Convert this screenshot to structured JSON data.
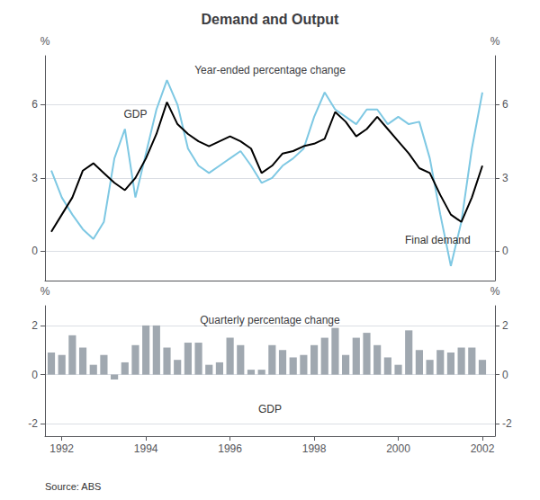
{
  "title": "Demand and Output",
  "source": "Source: ABS",
  "chart_data": [
    {
      "type": "line",
      "subtitle": "Year-ended percentage change",
      "x": [
        1991.75,
        1992.0,
        1992.25,
        1992.5,
        1992.75,
        1993.0,
        1993.25,
        1993.5,
        1993.75,
        1994.0,
        1994.25,
        1994.5,
        1994.75,
        1995.0,
        1995.25,
        1995.5,
        1995.75,
        1996.0,
        1996.25,
        1996.5,
        1996.75,
        1997.0,
        1997.25,
        1997.5,
        1997.75,
        1998.0,
        1998.25,
        1998.5,
        1998.75,
        1999.0,
        1999.25,
        1999.5,
        1999.75,
        2000.0,
        2000.25,
        2000.5,
        2000.75,
        2001.0,
        2001.25,
        2001.5,
        2001.75,
        2002.0
      ],
      "series": [
        {
          "name": "Final demand",
          "color": "#7ec8e3",
          "values": [
            3.3,
            2.2,
            1.5,
            0.9,
            0.5,
            1.2,
            3.8,
            5.0,
            2.2,
            4.0,
            5.8,
            7.0,
            6.0,
            4.2,
            3.5,
            3.2,
            3.5,
            3.8,
            4.1,
            3.5,
            2.8,
            3.0,
            3.5,
            3.8,
            4.2,
            5.5,
            6.5,
            5.8,
            5.5,
            5.2,
            5.8,
            5.8,
            5.2,
            5.5,
            5.2,
            5.3,
            3.8,
            1.5,
            -0.6,
            1.2,
            4.2,
            6.5
          ]
        },
        {
          "name": "GDP",
          "color": "#000000",
          "values": [
            0.8,
            1.5,
            2.2,
            3.3,
            3.6,
            3.2,
            2.8,
            2.5,
            3.0,
            3.8,
            4.8,
            6.1,
            5.2,
            4.8,
            4.5,
            4.3,
            4.5,
            4.7,
            4.5,
            4.2,
            3.2,
            3.5,
            4.0,
            4.1,
            4.3,
            4.4,
            4.6,
            5.7,
            5.3,
            4.7,
            5.0,
            5.5,
            5.0,
            4.5,
            4.0,
            3.4,
            3.2,
            2.3,
            1.5,
            1.2,
            2.2,
            3.5
          ]
        }
      ],
      "xlim": [
        1991.6,
        2002.3
      ],
      "xticks": [],
      "ylim": [
        -1.2,
        8.0
      ],
      "yticks": [
        0,
        3,
        6
      ],
      "y2lim": [
        -1.2,
        8.0
      ],
      "y2ticks": [
        0,
        3,
        6
      ],
      "ylabel": "%",
      "y2label": "%",
      "grid": true,
      "tick_labels": "y",
      "annotations": [
        "GDP",
        "Final demand"
      ]
    },
    {
      "type": "bar",
      "subtitle": "Quarterly percentage change",
      "x": [
        1991.75,
        1992.0,
        1992.25,
        1992.5,
        1992.75,
        1993.0,
        1993.25,
        1993.5,
        1993.75,
        1994.0,
        1994.25,
        1994.5,
        1994.75,
        1995.0,
        1995.25,
        1995.5,
        1995.75,
        1996.0,
        1996.25,
        1996.5,
        1996.75,
        1997.0,
        1997.25,
        1997.5,
        1997.75,
        1998.0,
        1998.25,
        1998.5,
        1998.75,
        1999.0,
        1999.25,
        1999.5,
        1999.75,
        2000.0,
        2000.25,
        2000.5,
        2000.75,
        2001.0,
        2001.25,
        2001.5,
        2001.75,
        2002.0
      ],
      "values": [
        0.9,
        0.8,
        1.6,
        1.1,
        0.4,
        0.8,
        -0.2,
        0.5,
        1.2,
        2.0,
        2.0,
        1.1,
        0.6,
        1.3,
        1.3,
        0.4,
        0.5,
        1.5,
        1.2,
        0.2,
        0.2,
        1.2,
        1.0,
        0.7,
        0.8,
        1.2,
        1.5,
        1.9,
        0.8,
        1.5,
        1.7,
        1.2,
        0.7,
        0.4,
        1.8,
        1.0,
        0.6,
        1.0,
        0.9,
        1.1,
        1.1,
        0.6
      ],
      "color": "#a0a8b0",
      "xlim": [
        1991.6,
        2002.3
      ],
      "xticks": [
        1992,
        1994,
        1996,
        1998,
        2000,
        2002
      ],
      "ylim": [
        -2.5,
        2.8
      ],
      "yticks": [
        -2,
        0,
        2
      ],
      "y2lim": [
        -2.5,
        2.8
      ],
      "y2ticks": [
        -2,
        0,
        2
      ],
      "ylabel": "%",
      "y2label": "%",
      "grid": true,
      "annotations": [
        "GDP"
      ]
    }
  ]
}
